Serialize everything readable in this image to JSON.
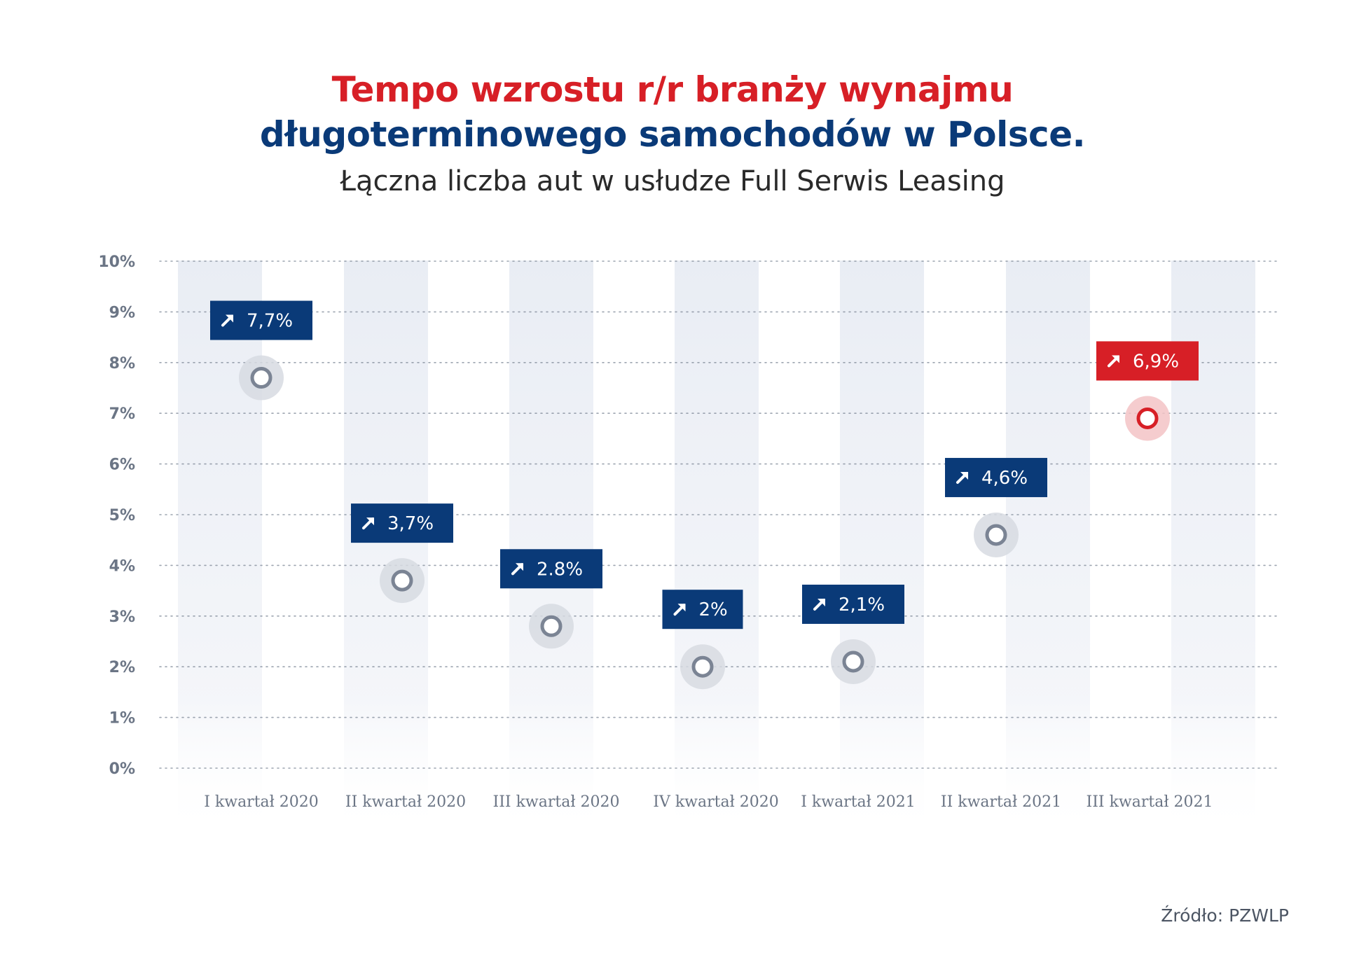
{
  "header": {
    "title_line1": "Tempo wzrostu r/r branży wynajmu",
    "title_line2": "długoterminowego samochodów w Polsce.",
    "subtitle": "Łączna liczba aut w usłudze Full Serwis Leasing"
  },
  "footer": {
    "source": "Źródło: PZWLP"
  },
  "colors": {
    "title_red": "#d71f26",
    "title_blue": "#0a3a78",
    "label_blue": "#0a3a78",
    "highlight_red": "#d71f26",
    "axis_text": "#6b7585",
    "band": "#eef1f6"
  },
  "chart_data": {
    "type": "lollipop",
    "title": "Tempo wzrostu r/r branży wynajmu długoterminowego samochodów w Polsce.",
    "subtitle": "Łączna liczba aut w usłudze Full Serwis Leasing",
    "categories": [
      "I kwartał 2020",
      "II kwartał 2020",
      "III kwartał 2020",
      "IV kwartał 2020",
      "I kwartał 2021",
      "II kwartał 2021",
      "III kwartał 2021"
    ],
    "values": [
      7.7,
      3.7,
      2.8,
      2.0,
      2.1,
      4.6,
      6.9
    ],
    "data_labels": [
      "7,7%",
      "3,7%",
      "2.8%",
      "2%",
      "2,1%",
      "4,6%",
      "6,9%"
    ],
    "highlight_index": 6,
    "ylim": [
      0,
      10
    ],
    "y_ticks": [
      0,
      1,
      2,
      3,
      4,
      5,
      6,
      7,
      8,
      9,
      10
    ],
    "y_tick_labels": [
      "0%",
      "1%",
      "2%",
      "3%",
      "4%",
      "5%",
      "6%",
      "7%",
      "8%",
      "9%",
      "10%"
    ],
    "grid": true,
    "grid_style": "dotted"
  }
}
